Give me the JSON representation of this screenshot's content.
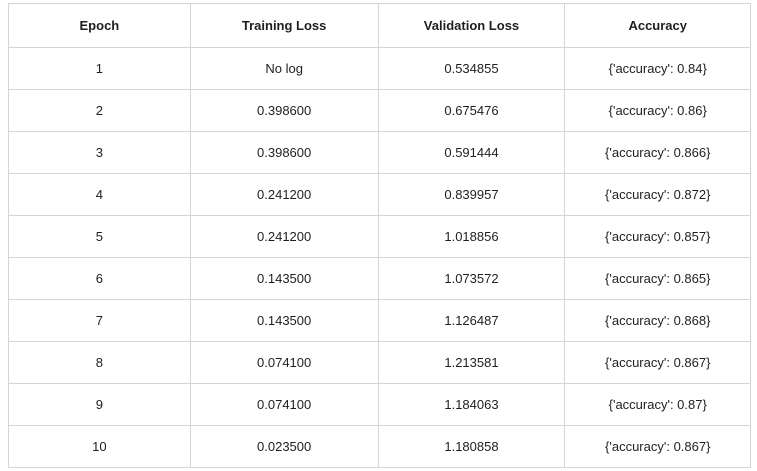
{
  "colors": {
    "background": "#ffffff",
    "border": "#d5d5d5",
    "text": "#1f1f1f"
  },
  "table": {
    "columns": [
      "Epoch",
      "Training Loss",
      "Validation Loss",
      "Accuracy"
    ],
    "rows": [
      [
        "1",
        "No log",
        "0.534855",
        "{'accuracy': 0.84}"
      ],
      [
        "2",
        "0.398600",
        "0.675476",
        "{'accuracy': 0.86}"
      ],
      [
        "3",
        "0.398600",
        "0.591444",
        "{'accuracy': 0.866}"
      ],
      [
        "4",
        "0.241200",
        "0.839957",
        "{'accuracy': 0.872}"
      ],
      [
        "5",
        "0.241200",
        "1.018856",
        "{'accuracy': 0.857}"
      ],
      [
        "6",
        "0.143500",
        "1.073572",
        "{'accuracy': 0.865}"
      ],
      [
        "7",
        "0.143500",
        "1.126487",
        "{'accuracy': 0.868}"
      ],
      [
        "8",
        "0.074100",
        "1.213581",
        "{'accuracy': 0.867}"
      ],
      [
        "9",
        "0.074100",
        "1.184063",
        "{'accuracy': 0.87}"
      ],
      [
        "10",
        "0.023500",
        "1.180858",
        "{'accuracy': 0.867}"
      ]
    ]
  }
}
